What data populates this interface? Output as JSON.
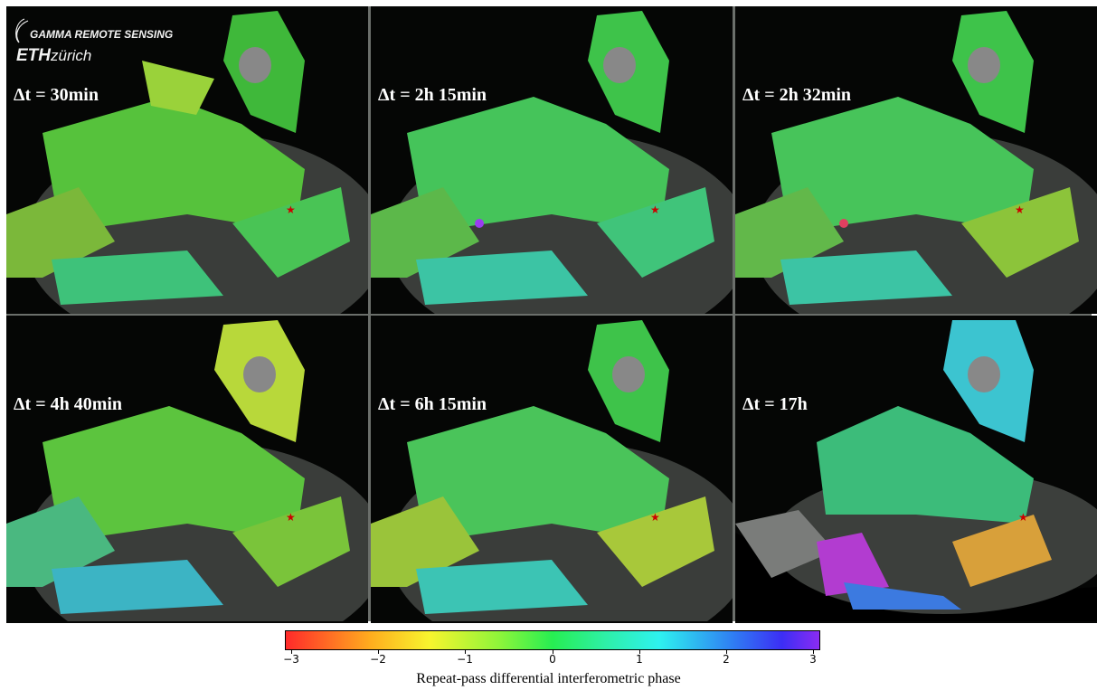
{
  "logo": {
    "gamma_text": "GAMMA REMOTE SENSING",
    "eth_text": "ETH",
    "zurich_text": "zürich"
  },
  "panels": [
    {
      "label": "Δt = 30min"
    },
    {
      "label": "Δt = 2h 15min"
    },
    {
      "label": "Δt = 2h 32min"
    },
    {
      "label": "Δt = 4h 40min"
    },
    {
      "label": "Δt = 6h 15min"
    },
    {
      "label": "Δt = 17h"
    }
  ],
  "colorbar": {
    "ticks": [
      "−3",
      "−2",
      "−1",
      "0",
      "1",
      "2",
      "3"
    ],
    "label": "Repeat-pass differential interferometric phase",
    "colors": [
      "#ff2a2a",
      "#ffae1e",
      "#f7f52e",
      "#8ef53a",
      "#27ee52",
      "#2ef0a8",
      "#2ef2ef",
      "#2f7cf3",
      "#3c2ef5",
      "#8a2cf2"
    ]
  },
  "marker_color": "#cc0000"
}
